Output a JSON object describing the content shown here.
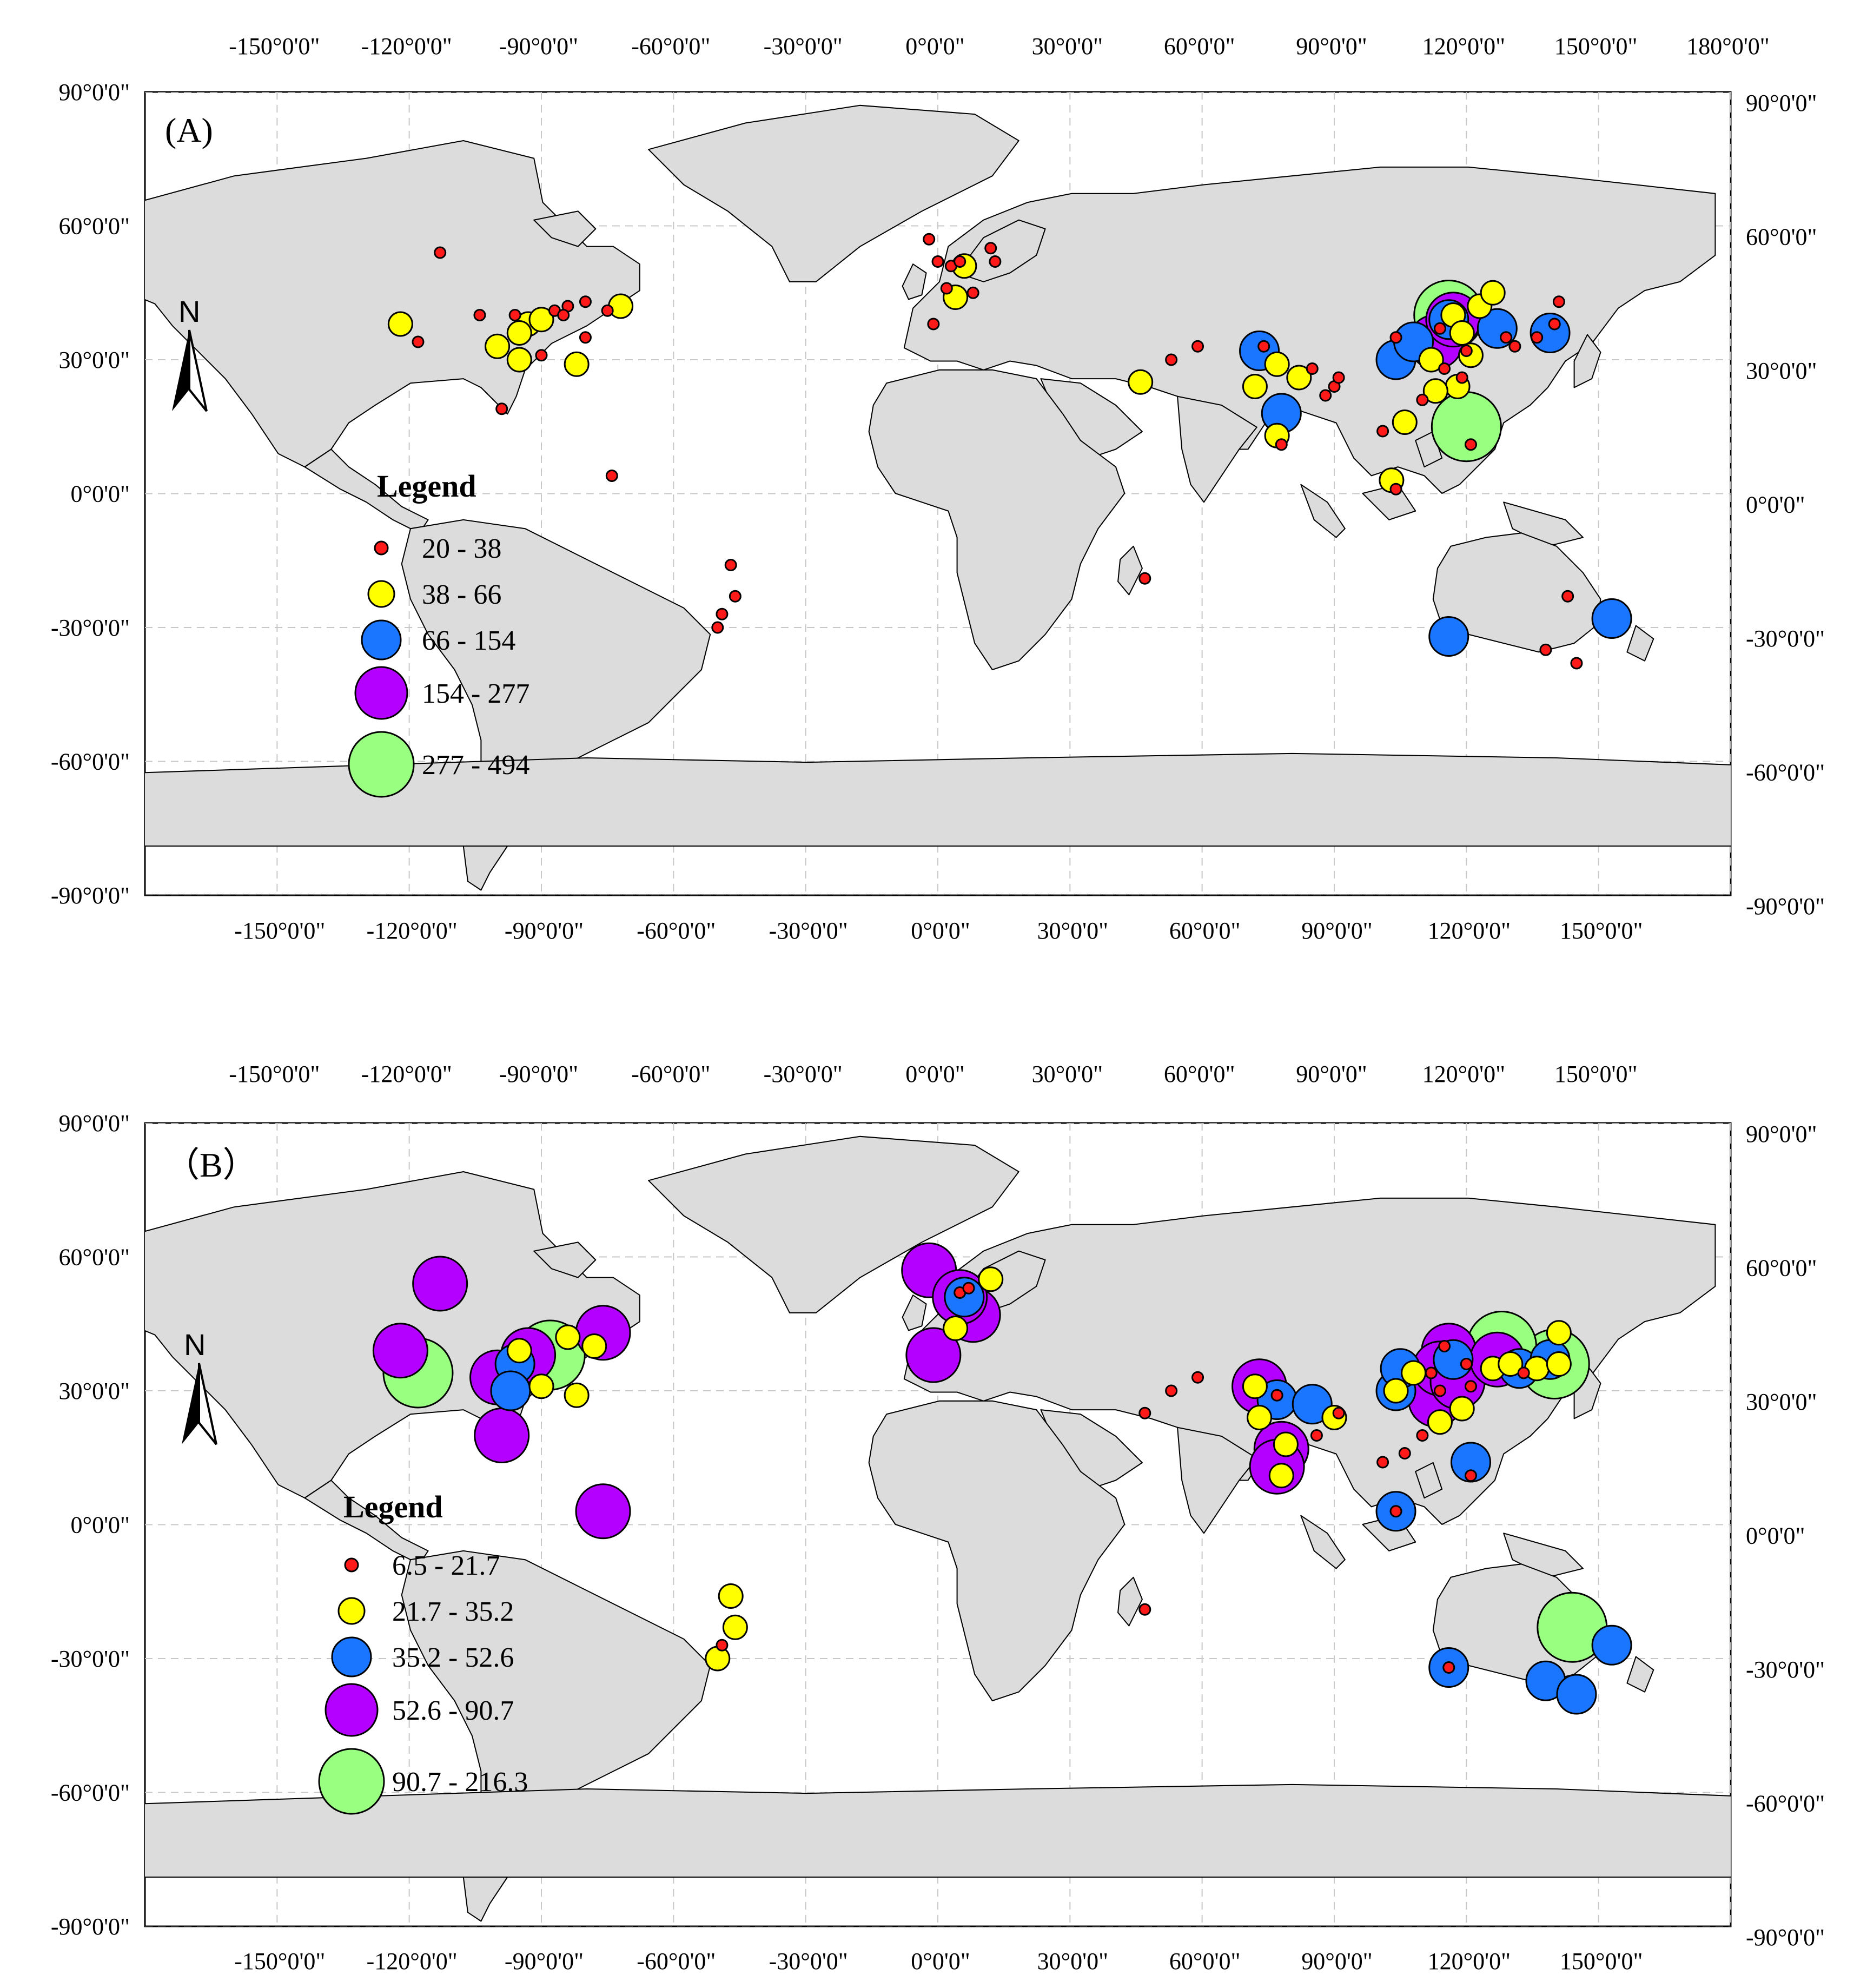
{
  "colors": {
    "land": "#dcdcdc",
    "class1": "#ff1a1a",
    "class2": "#ffff00",
    "class3": "#1a75ff",
    "class4": "#b300ff",
    "class5": "#99ff80"
  },
  "lon_ticks": [
    "-150°0'0\"",
    "-120°0'0\"",
    "-90°0'0\"",
    "-60°0'0\"",
    "-30°0'0\"",
    "0°0'0\"",
    "30°0'0\"",
    "60°0'0\"",
    "90°0'0\"",
    "120°0'0\"",
    "150°0'0\"",
    "180°0'0\""
  ],
  "lat_ticks": [
    "90°0'0\"",
    "60°0'0\"",
    "30°0'0\"",
    "0°0'0\"",
    "-30°0'0\"",
    "-60°0'0\"",
    "-90°0'0\""
  ],
  "north_label": "N",
  "panels": [
    {
      "label": "(A)",
      "legend_title": "Legend",
      "classes": [
        "20 - 38",
        "38 - 66",
        "66 - 154",
        "154 - 277",
        "277 - 494"
      ],
      "points": [
        {
          "lon": -113,
          "lat": 54,
          "c": 1
        },
        {
          "lon": -122,
          "lat": 38,
          "c": 2
        },
        {
          "lon": -118,
          "lat": 34,
          "c": 1
        },
        {
          "lon": -104,
          "lat": 40,
          "c": 1
        },
        {
          "lon": -100,
          "lat": 33,
          "c": 2
        },
        {
          "lon": -96,
          "lat": 40,
          "c": 1
        },
        {
          "lon": -93,
          "lat": 38,
          "c": 2
        },
        {
          "lon": -95,
          "lat": 36,
          "c": 2
        },
        {
          "lon": -90,
          "lat": 39,
          "c": 2
        },
        {
          "lon": -87,
          "lat": 41,
          "c": 1
        },
        {
          "lon": -84,
          "lat": 42,
          "c": 1
        },
        {
          "lon": -80,
          "lat": 43,
          "c": 1
        },
        {
          "lon": -85,
          "lat": 40,
          "c": 1
        },
        {
          "lon": -95,
          "lat": 30,
          "c": 2
        },
        {
          "lon": -90,
          "lat": 31,
          "c": 1
        },
        {
          "lon": -82,
          "lat": 29,
          "c": 2
        },
        {
          "lon": -80,
          "lat": 35,
          "c": 1
        },
        {
          "lon": -75,
          "lat": 41,
          "c": 1
        },
        {
          "lon": -72,
          "lat": 42,
          "c": 2
        },
        {
          "lon": -99,
          "lat": 19,
          "c": 1
        },
        {
          "lon": -74,
          "lat": 4,
          "c": 1
        },
        {
          "lon": -47,
          "lat": -16,
          "c": 1
        },
        {
          "lon": -46,
          "lat": -23,
          "c": 1
        },
        {
          "lon": -49,
          "lat": -27,
          "c": 1
        },
        {
          "lon": -50,
          "lat": -30,
          "c": 1
        },
        {
          "lon": -2,
          "lat": 57,
          "c": 1
        },
        {
          "lon": 0,
          "lat": 52,
          "c": 1
        },
        {
          "lon": 3,
          "lat": 51,
          "c": 1
        },
        {
          "lon": 5,
          "lat": 52,
          "c": 1
        },
        {
          "lon": 6,
          "lat": 51,
          "c": 2
        },
        {
          "lon": 12,
          "lat": 55,
          "c": 1
        },
        {
          "lon": 13,
          "lat": 52,
          "c": 1
        },
        {
          "lon": 2,
          "lat": 46,
          "c": 1
        },
        {
          "lon": 4,
          "lat": 44,
          "c": 2
        },
        {
          "lon": 8,
          "lat": 45,
          "c": 1
        },
        {
          "lon": -1,
          "lat": 38,
          "c": 1
        },
        {
          "lon": 47,
          "lat": -19,
          "c": 1
        },
        {
          "lon": 46,
          "lat": 25,
          "c": 2
        },
        {
          "lon": 53,
          "lat": 30,
          "c": 1
        },
        {
          "lon": 59,
          "lat": 33,
          "c": 1
        },
        {
          "lon": 73,
          "lat": 32,
          "c": 3
        },
        {
          "lon": 74,
          "lat": 33,
          "c": 1
        },
        {
          "lon": 77,
          "lat": 29,
          "c": 2
        },
        {
          "lon": 72,
          "lat": 24,
          "c": 2
        },
        {
          "lon": 82,
          "lat": 26,
          "c": 2
        },
        {
          "lon": 78,
          "lat": 18,
          "c": 3
        },
        {
          "lon": 77,
          "lat": 13,
          "c": 2
        },
        {
          "lon": 78,
          "lat": 11,
          "c": 1
        },
        {
          "lon": 85,
          "lat": 28,
          "c": 1
        },
        {
          "lon": 88,
          "lat": 22,
          "c": 1
        },
        {
          "lon": 90,
          "lat": 24,
          "c": 1
        },
        {
          "lon": 91,
          "lat": 26,
          "c": 1
        },
        {
          "lon": 104,
          "lat": 30,
          "c": 3
        },
        {
          "lon": 104,
          "lat": 35,
          "c": 1
        },
        {
          "lon": 108,
          "lat": 34,
          "c": 3
        },
        {
          "lon": 113,
          "lat": 34,
          "c": 4
        },
        {
          "lon": 116,
          "lat": 40,
          "c": 5
        },
        {
          "lon": 117,
          "lat": 39,
          "c": 4
        },
        {
          "lon": 116,
          "lat": 39,
          "c": 3
        },
        {
          "lon": 117,
          "lat": 40,
          "c": 2
        },
        {
          "lon": 114,
          "lat": 37,
          "c": 1
        },
        {
          "lon": 119,
          "lat": 36,
          "c": 2
        },
        {
          "lon": 121,
          "lat": 31,
          "c": 2
        },
        {
          "lon": 120,
          "lat": 32,
          "c": 1
        },
        {
          "lon": 118,
          "lat": 24,
          "c": 2
        },
        {
          "lon": 113,
          "lat": 23,
          "c": 2
        },
        {
          "lon": 110,
          "lat": 21,
          "c": 1
        },
        {
          "lon": 115,
          "lat": 28,
          "c": 1
        },
        {
          "lon": 112,
          "lat": 30,
          "c": 2
        },
        {
          "lon": 119,
          "lat": 26,
          "c": 1
        },
        {
          "lon": 123,
          "lat": 42,
          "c": 2
        },
        {
          "lon": 126,
          "lat": 45,
          "c": 2
        },
        {
          "lon": 127,
          "lat": 37,
          "c": 3
        },
        {
          "lon": 129,
          "lat": 35,
          "c": 1
        },
        {
          "lon": 131,
          "lat": 33,
          "c": 1
        },
        {
          "lon": 136,
          "lat": 35,
          "c": 1
        },
        {
          "lon": 139,
          "lat": 36,
          "c": 3
        },
        {
          "lon": 140,
          "lat": 38,
          "c": 1
        },
        {
          "lon": 141,
          "lat": 43,
          "c": 1
        },
        {
          "lon": 120,
          "lat": 15,
          "c": 5
        },
        {
          "lon": 121,
          "lat": 11,
          "c": 1
        },
        {
          "lon": 106,
          "lat": 16,
          "c": 2
        },
        {
          "lon": 101,
          "lat": 14,
          "c": 1
        },
        {
          "lon": 103,
          "lat": 3,
          "c": 2
        },
        {
          "lon": 104,
          "lat": 1,
          "c": 1
        },
        {
          "lon": 116,
          "lat": -32,
          "c": 3
        },
        {
          "lon": 153,
          "lat": -28,
          "c": 3
        },
        {
          "lon": 143,
          "lat": -23,
          "c": 1
        },
        {
          "lon": 138,
          "lat": -35,
          "c": 1
        },
        {
          "lon": 145,
          "lat": -38,
          "c": 1
        }
      ]
    },
    {
      "label": "（B）",
      "legend_title": "Legend",
      "classes": [
        "6.5 - 21.7",
        "21.7 - 35.2",
        "35.2 - 52.6",
        "52.6 - 90.7",
        "90.7 - 216.3"
      ],
      "points": [
        {
          "lon": -113,
          "lat": 54,
          "c": 4
        },
        {
          "lon": -122,
          "lat": 39,
          "c": 4
        },
        {
          "lon": -118,
          "lat": 34,
          "c": 5
        },
        {
          "lon": -88,
          "lat": 38,
          "c": 5
        },
        {
          "lon": -100,
          "lat": 33,
          "c": 4
        },
        {
          "lon": -96,
          "lat": 36,
          "c": 3
        },
        {
          "lon": -93,
          "lat": 38,
          "c": 4
        },
        {
          "lon": -95,
          "lat": 39,
          "c": 2
        },
        {
          "lon": -90,
          "lat": 31,
          "c": 2
        },
        {
          "lon": -76,
          "lat": 43,
          "c": 4
        },
        {
          "lon": -78,
          "lat": 40,
          "c": 2
        },
        {
          "lon": -84,
          "lat": 42,
          "c": 2
        },
        {
          "lon": -82,
          "lat": 29,
          "c": 2
        },
        {
          "lon": -97,
          "lat": 30,
          "c": 3
        },
        {
          "lon": -99,
          "lat": 20,
          "c": 4
        },
        {
          "lon": -76,
          "lat": 3,
          "c": 4
        },
        {
          "lon": -47,
          "lat": -16,
          "c": 2
        },
        {
          "lon": -46,
          "lat": -23,
          "c": 2
        },
        {
          "lon": -49,
          "lat": -27,
          "c": 1
        },
        {
          "lon": -50,
          "lat": -30,
          "c": 2
        },
        {
          "lon": -2,
          "lat": 57,
          "c": 4
        },
        {
          "lon": -1,
          "lat": 38,
          "c": 4
        },
        {
          "lon": 8,
          "lat": 47,
          "c": 4
        },
        {
          "lon": 5,
          "lat": 51,
          "c": 4
        },
        {
          "lon": 6,
          "lat": 51,
          "c": 3
        },
        {
          "lon": 12,
          "lat": 55,
          "c": 2
        },
        {
          "lon": 4,
          "lat": 44,
          "c": 2
        },
        {
          "lon": 5,
          "lat": 52,
          "c": 1
        },
        {
          "lon": 7,
          "lat": 53,
          "c": 1
        },
        {
          "lon": 47,
          "lat": -19,
          "c": 1
        },
        {
          "lon": 47,
          "lat": 25,
          "c": 1
        },
        {
          "lon": 53,
          "lat": 30,
          "c": 1
        },
        {
          "lon": 59,
          "lat": 33,
          "c": 1
        },
        {
          "lon": 73,
          "lat": 31,
          "c": 4
        },
        {
          "lon": 77,
          "lat": 28,
          "c": 3
        },
        {
          "lon": 72,
          "lat": 31,
          "c": 2
        },
        {
          "lon": 73,
          "lat": 24,
          "c": 2
        },
        {
          "lon": 78,
          "lat": 17,
          "c": 4
        },
        {
          "lon": 77,
          "lat": 13,
          "c": 4
        },
        {
          "lon": 79,
          "lat": 18,
          "c": 2
        },
        {
          "lon": 78,
          "lat": 11,
          "c": 2
        },
        {
          "lon": 77,
          "lat": 29,
          "c": 1
        },
        {
          "lon": 85,
          "lat": 27,
          "c": 3
        },
        {
          "lon": 86,
          "lat": 20,
          "c": 1
        },
        {
          "lon": 90,
          "lat": 24,
          "c": 2
        },
        {
          "lon": 91,
          "lat": 25,
          "c": 1
        },
        {
          "lon": 104,
          "lat": 30,
          "c": 3
        },
        {
          "lon": 105,
          "lat": 35,
          "c": 3
        },
        {
          "lon": 113,
          "lat": 28,
          "c": 4
        },
        {
          "lon": 116,
          "lat": 39,
          "c": 4
        },
        {
          "lon": 114,
          "lat": 35,
          "c": 4
        },
        {
          "lon": 117,
          "lat": 37,
          "c": 3
        },
        {
          "lon": 118,
          "lat": 32,
          "c": 4
        },
        {
          "lon": 108,
          "lat": 34,
          "c": 2
        },
        {
          "lon": 104,
          "lat": 30,
          "c": 2
        },
        {
          "lon": 114,
          "lat": 23,
          "c": 2
        },
        {
          "lon": 119,
          "lat": 26,
          "c": 2
        },
        {
          "lon": 121,
          "lat": 31,
          "c": 1
        },
        {
          "lon": 115,
          "lat": 40,
          "c": 1
        },
        {
          "lon": 120,
          "lat": 36,
          "c": 1
        },
        {
          "lon": 112,
          "lat": 34,
          "c": 1
        },
        {
          "lon": 110,
          "lat": 20,
          "c": 1
        },
        {
          "lon": 114,
          "lat": 30,
          "c": 1
        },
        {
          "lon": 140,
          "lat": 36,
          "c": 5
        },
        {
          "lon": 128,
          "lat": 40,
          "c": 5
        },
        {
          "lon": 127,
          "lat": 37,
          "c": 4
        },
        {
          "lon": 132,
          "lat": 35,
          "c": 3
        },
        {
          "lon": 139,
          "lat": 37,
          "c": 3
        },
        {
          "lon": 126,
          "lat": 35,
          "c": 2
        },
        {
          "lon": 130,
          "lat": 36,
          "c": 2
        },
        {
          "lon": 136,
          "lat": 35,
          "c": 2
        },
        {
          "lon": 141,
          "lat": 36,
          "c": 2
        },
        {
          "lon": 141,
          "lat": 43,
          "c": 2
        },
        {
          "lon": 133,
          "lat": 34,
          "c": 1
        },
        {
          "lon": 121,
          "lat": 14,
          "c": 3
        },
        {
          "lon": 121,
          "lat": 11,
          "c": 1
        },
        {
          "lon": 104,
          "lat": 3,
          "c": 3
        },
        {
          "lon": 106,
          "lat": 16,
          "c": 1
        },
        {
          "lon": 101,
          "lat": 14,
          "c": 1
        },
        {
          "lon": 104,
          "lat": 3,
          "c": 1
        },
        {
          "lon": 144,
          "lat": -23,
          "c": 5
        },
        {
          "lon": 116,
          "lat": -32,
          "c": 3
        },
        {
          "lon": 153,
          "lat": -27,
          "c": 3
        },
        {
          "lon": 138,
          "lat": -35,
          "c": 3
        },
        {
          "lon": 145,
          "lat": -38,
          "c": 3
        },
        {
          "lon": 116,
          "lat": -32,
          "c": 1
        }
      ]
    }
  ]
}
